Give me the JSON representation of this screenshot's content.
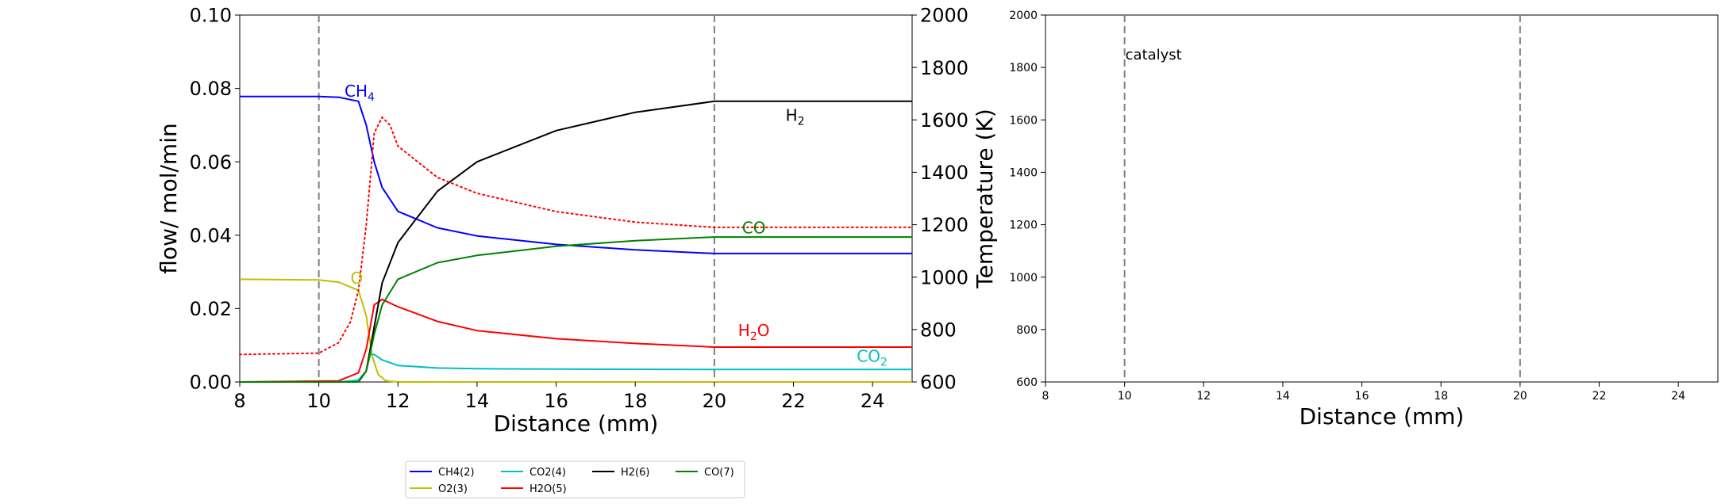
{
  "chart_data": [
    {
      "type": "line",
      "xlabel": "Distance (mm)",
      "ylabel": "flow/ mol/min",
      "y2label": "Temperature (K)",
      "xlim": [
        8,
        25
      ],
      "ylim": [
        0,
        0.1
      ],
      "y2lim": [
        600,
        2000
      ],
      "xticks": [
        "8",
        "10",
        "12",
        "14",
        "16",
        "18",
        "20",
        "22",
        "24"
      ],
      "yticks": [
        "0.00",
        "0.02",
        "0.04",
        "0.06",
        "0.08",
        "0.10"
      ],
      "y2ticks": [
        "600",
        "800",
        "1000",
        "1200",
        "1400",
        "1600",
        "1800",
        "2000"
      ],
      "vlines": [
        10,
        20
      ],
      "series": [
        {
          "name": "CH4(2)",
          "color": "#0000ff",
          "style": "solid",
          "axis": "left",
          "x": [
            8,
            10,
            10.5,
            11.0,
            11.2,
            11.4,
            11.6,
            12,
            13,
            14,
            16,
            18,
            20,
            25
          ],
          "y": [
            0.0778,
            0.0778,
            0.0776,
            0.0765,
            0.07,
            0.06,
            0.053,
            0.0465,
            0.042,
            0.0398,
            0.0375,
            0.036,
            0.035,
            0.035
          ]
        },
        {
          "name": "O2(3)",
          "color": "#bfbf00",
          "style": "solid",
          "axis": "left",
          "x": [
            8,
            10,
            10.5,
            11.0,
            11.2,
            11.35,
            11.5,
            11.7,
            12,
            25
          ],
          "y": [
            0.028,
            0.0278,
            0.0272,
            0.025,
            0.018,
            0.007,
            0.002,
            0.0003,
            0,
            0
          ]
        },
        {
          "name": "CO2(4)",
          "color": "#00bfbf",
          "style": "solid",
          "axis": "left",
          "x": [
            8,
            10.5,
            11.0,
            11.2,
            11.3,
            11.4,
            11.6,
            12,
            13,
            14,
            16,
            20,
            25
          ],
          "y": [
            0,
            0,
            0.0005,
            0.003,
            0.0075,
            0.0075,
            0.006,
            0.0045,
            0.0038,
            0.0036,
            0.0035,
            0.0034,
            0.0034
          ]
        },
        {
          "name": "H2O(5)",
          "color": "#ff0000",
          "style": "solid",
          "axis": "left",
          "x": [
            8,
            10.5,
            11.0,
            11.2,
            11.4,
            11.6,
            12,
            13,
            14,
            16,
            18,
            20,
            25
          ],
          "y": [
            0,
            0.0003,
            0.0025,
            0.009,
            0.021,
            0.0225,
            0.0205,
            0.0165,
            0.014,
            0.0118,
            0.0105,
            0.0095,
            0.0095
          ]
        },
        {
          "name": "H2(6)",
          "color": "#000000",
          "style": "solid",
          "axis": "left",
          "x": [
            8,
            11.0,
            11.2,
            11.4,
            11.6,
            12,
            13,
            14,
            16,
            18,
            20,
            25
          ],
          "y": [
            0,
            0,
            0.003,
            0.015,
            0.027,
            0.038,
            0.052,
            0.06,
            0.0685,
            0.0735,
            0.0765,
            0.0765
          ]
        },
        {
          "name": "CO(7)",
          "color": "#008000",
          "style": "solid",
          "axis": "left",
          "x": [
            8,
            11.0,
            11.2,
            11.4,
            11.6,
            12,
            13,
            14,
            16,
            18,
            20,
            25
          ],
          "y": [
            0,
            0,
            0.003,
            0.013,
            0.021,
            0.028,
            0.0325,
            0.0345,
            0.037,
            0.0385,
            0.0395,
            0.0395
          ]
        },
        {
          "name": "",
          "color": "#ff0000",
          "style": "dotted",
          "axis": "right",
          "x": [
            8,
            10,
            10.5,
            10.8,
            11.0,
            11.2,
            11.4,
            11.6,
            11.8,
            12,
            13,
            14,
            16,
            18,
            20,
            25
          ],
          "y": [
            705,
            710,
            750,
            830,
            950,
            1200,
            1550,
            1610,
            1580,
            1500,
            1380,
            1320,
            1250,
            1210,
            1190,
            1190
          ]
        }
      ],
      "annotations": [
        {
          "base": "CH",
          "sub": "4",
          "color": "#0000ff",
          "x": 10.65,
          "y": 0.0778
        },
        {
          "base": "O",
          "sub": "",
          "color": "#bfbf00",
          "x": 10.8,
          "y": 0.0268
        },
        {
          "base": "H",
          "sub": "2",
          "color": "#000000",
          "x": 21.8,
          "y": 0.0712
        },
        {
          "base": "CO",
          "sub": "",
          "color": "#008000",
          "x": 20.7,
          "y": 0.0405
        },
        {
          "base": "H",
          "sub": "2",
          "post": "O",
          "color": "#ff0000",
          "x": 20.6,
          "y": 0.0125
        },
        {
          "base": "CO",
          "sub": "2",
          "color": "#00bfbf",
          "x": 23.6,
          "y": 0.0055
        }
      ]
    },
    {
      "type": "line",
      "xlabel": "Distance (mm)",
      "xlim": [
        8,
        25
      ],
      "ylim": [
        600,
        2000
      ],
      "xticks": [
        "8",
        "10",
        "12",
        "14",
        "16",
        "18",
        "20",
        "22",
        "24"
      ],
      "yticks": [
        "600",
        "800",
        "1000",
        "1200",
        "1400",
        "1600",
        "1800",
        "2000"
      ],
      "vlines": [
        10,
        20
      ],
      "annotations": [
        {
          "text": "catalyst",
          "x": 10,
          "y": 1830
        }
      ]
    }
  ],
  "legend": {
    "placement": "bottom-center",
    "entries": [
      {
        "label": "CH4(2)",
        "color": "#0000ff"
      },
      {
        "label": "CO2(4)",
        "color": "#00bfbf"
      },
      {
        "label": "H2(6)",
        "color": "#000000"
      },
      {
        "label": "CO(7)",
        "color": "#008000"
      },
      {
        "label": "O2(3)",
        "color": "#bfbf00"
      },
      {
        "label": "H2O(5)",
        "color": "#ff0000"
      }
    ]
  }
}
